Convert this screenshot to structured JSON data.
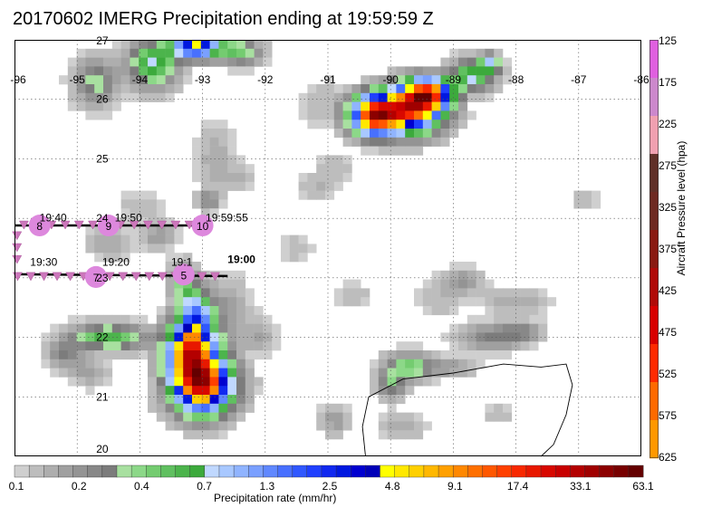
{
  "title": "20170602 IMERG Precipitation ending at 19:59:59 Z",
  "map": {
    "lon_range": [
      -96,
      -86
    ],
    "lat_range": [
      20,
      27
    ],
    "lon_ticks": [
      "-96",
      "-95",
      "-94",
      "-93",
      "-92",
      "-91",
      "-90",
      "-89",
      "-88",
      "-87",
      "-86"
    ],
    "lat_ticks": [
      "27",
      "26",
      "25",
      "24",
      "23",
      "22",
      "21",
      "20"
    ],
    "grid": true
  },
  "flight_track": {
    "time_labels": [
      {
        "text": "19:40",
        "lon": -95.6,
        "lat": 23.95
      },
      {
        "text": "19:50",
        "lon": -94.4,
        "lat": 23.95
      },
      {
        "text": "19:59:55",
        "lon": -92.95,
        "lat": 23.95
      },
      {
        "text": "19:30",
        "lon": -95.75,
        "lat": 23.2
      },
      {
        "text": "19:20",
        "lon": -94.6,
        "lat": 23.2
      },
      {
        "text": "19:1",
        "lon": -93.5,
        "lat": 23.2
      },
      {
        "text": "19:00",
        "lon": -92.6,
        "lat": 23.25
      }
    ],
    "markers": [
      {
        "text": "8",
        "lon": -95.6,
        "lat": 23.88
      },
      {
        "text": "9",
        "lon": -94.5,
        "lat": 23.88
      },
      {
        "text": "10",
        "lon": -93.0,
        "lat": 23.88
      },
      {
        "text": "6",
        "lon": -94.7,
        "lat": 23.06
      },
      {
        "text": "7",
        "lon": -94.7,
        "lat": 23.06
      },
      {
        "text": "5",
        "lon": -93.3,
        "lat": 23.1
      }
    ],
    "marker_color": "#dd88dd",
    "triangle_color": "#cc77bb"
  },
  "precip_colorbar": {
    "labels": [
      "0.1",
      "0.2",
      "0.4",
      "0.7",
      "1.3",
      "2.5",
      "4.8",
      "9.1",
      "17.4",
      "33.1",
      "63.1"
    ],
    "caption": "Precipitation rate (mm/hr)",
    "colors": [
      "#cfcfcf",
      "#bdbdbd",
      "#aeaeae",
      "#a0a0a0",
      "#949494",
      "#888888",
      "#7c7c7c",
      "#a8e0a0",
      "#8cd888",
      "#74cc70",
      "#60c060",
      "#4cb44c",
      "#3caa3c",
      "#c0d8ff",
      "#a8c8ff",
      "#90b4ff",
      "#7aa0ff",
      "#6088ff",
      "#4870ff",
      "#3058ff",
      "#2040ff",
      "#1028f0",
      "#0018e0",
      "#0000d0",
      "#0000b8",
      "#ffff00",
      "#ffe800",
      "#ffd000",
      "#ffb800",
      "#ffa000",
      "#ff8800",
      "#ff7000",
      "#ff5800",
      "#ff4000",
      "#f82800",
      "#e81800",
      "#d80800",
      "#c80000",
      "#b40000",
      "#a00000",
      "#8c0000",
      "#780000",
      "#640000"
    ]
  },
  "pressure_colorbar": {
    "labels": [
      "125",
      "175",
      "225",
      "275",
      "325",
      "375",
      "425",
      "475",
      "525",
      "575",
      "625"
    ],
    "title": "Aircraft Pressure level (hpa)",
    "colors": [
      "#e060e0",
      "#cc88cc",
      "#f0a0b0",
      "#603028",
      "#6e2a22",
      "#8a1a12",
      "#b00a08",
      "#d80000",
      "#ff2a00",
      "#ff6a00",
      "#ff9800"
    ]
  }
}
